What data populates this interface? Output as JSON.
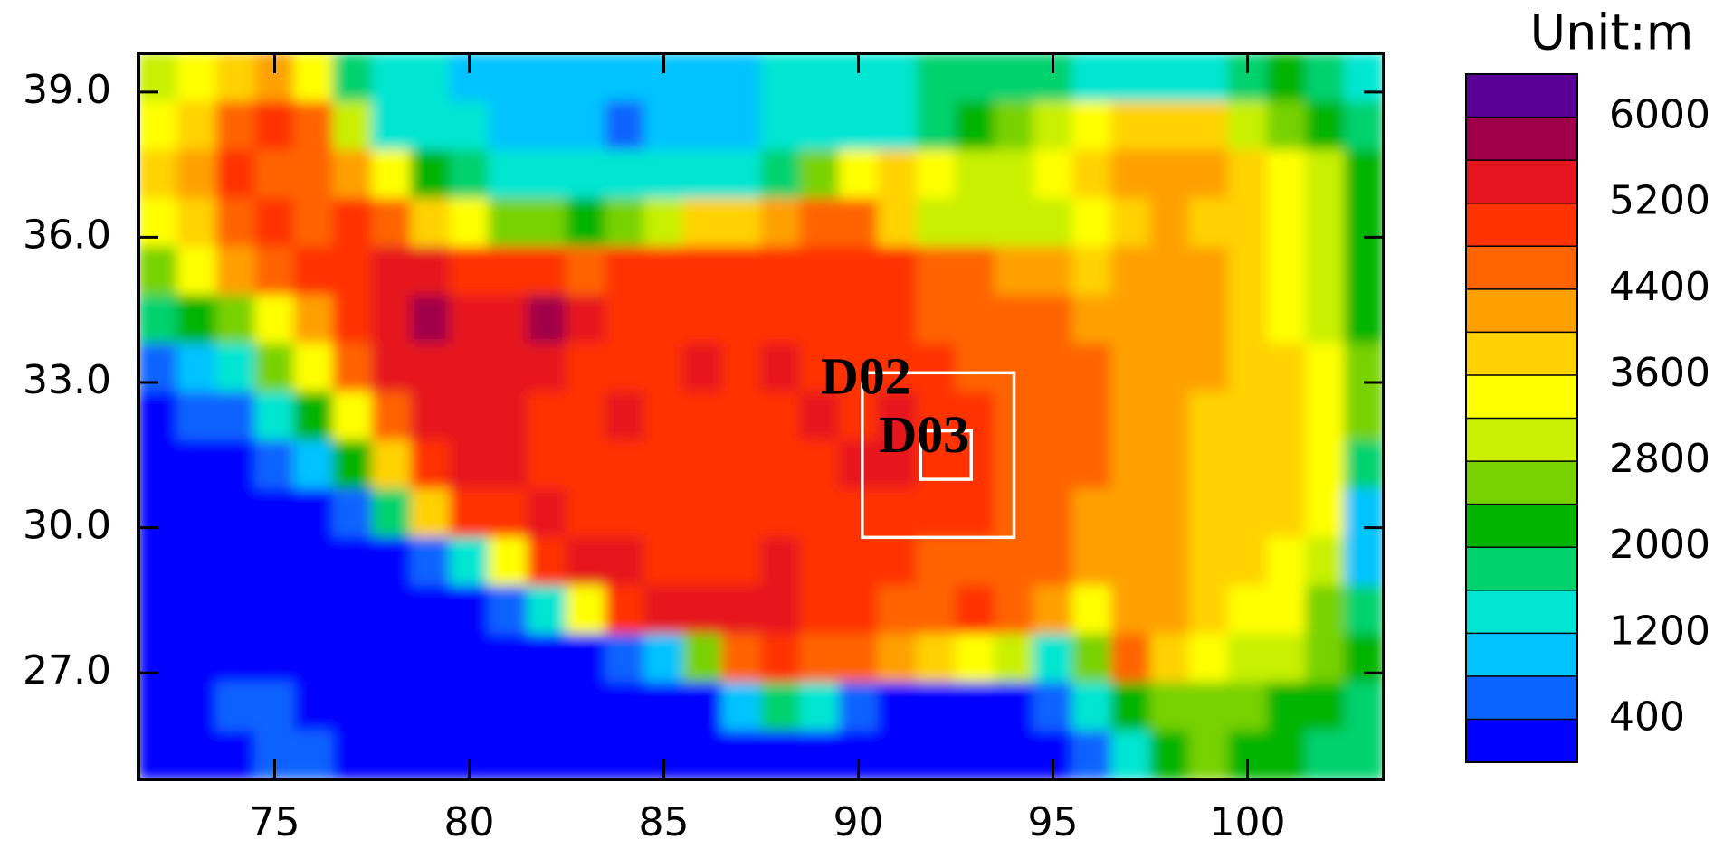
{
  "chart_data": {
    "type": "heatmap",
    "title": "Unit:m",
    "xlim": [
      71.5,
      103.5
    ],
    "ylim": [
      24.8,
      39.8
    ],
    "xticks": [
      75,
      80,
      85,
      90,
      95,
      100
    ],
    "yticks": [
      {
        "value": 27,
        "label": "27.0"
      },
      {
        "value": 30,
        "label": "30.0"
      },
      {
        "value": 33,
        "label": "33.0"
      },
      {
        "value": 36,
        "label": "36.0"
      },
      {
        "value": 39,
        "label": "39.0"
      }
    ],
    "lon": [
      72,
      73,
      74,
      75,
      76,
      77,
      78,
      79,
      80,
      81,
      82,
      83,
      84,
      85,
      86,
      87,
      88,
      89,
      90,
      91,
      92,
      93,
      94,
      95,
      96,
      97,
      98,
      99,
      100,
      101,
      102,
      103
    ],
    "lat": [
      39.3,
      38.3,
      37.3,
      36.3,
      35.3,
      34.3,
      33.3,
      32.3,
      31.3,
      30.3,
      29.3,
      28.3,
      27.3,
      26.3,
      25.3
    ],
    "z": [
      [
        3000,
        3500,
        3800,
        4200,
        3500,
        1800,
        1300,
        1200,
        1100,
        1100,
        1100,
        1000,
        1100,
        1100,
        1100,
        1100,
        1200,
        1200,
        1200,
        1400,
        1600,
        1800,
        1800,
        1600,
        1500,
        1500,
        1500,
        1500,
        1800,
        2000,
        1600,
        1400
      ],
      [
        3200,
        3800,
        4500,
        4800,
        4400,
        2800,
        1400,
        1200,
        1200,
        1100,
        1000,
        800,
        700,
        1000,
        1100,
        1100,
        1200,
        1200,
        1300,
        1400,
        1600,
        2000,
        2600,
        3000,
        3400,
        3600,
        3800,
        3600,
        3000,
        2400,
        2000,
        1800
      ],
      [
        3600,
        4000,
        4800,
        4600,
        4400,
        4000,
        3200,
        2200,
        1600,
        1500,
        1400,
        1300,
        1300,
        1300,
        1400,
        1500,
        1800,
        2600,
        3400,
        3600,
        3400,
        3000,
        2900,
        3400,
        3800,
        4000,
        4200,
        4000,
        3800,
        3400,
        2800,
        2200
      ],
      [
        3400,
        3800,
        4400,
        4800,
        4600,
        4800,
        4400,
        3600,
        3200,
        2600,
        2400,
        2200,
        2400,
        3000,
        3600,
        3800,
        4000,
        4400,
        4400,
        3800,
        2900,
        2800,
        2800,
        2900,
        3400,
        3800,
        4000,
        3800,
        3600,
        3400,
        2800,
        2200
      ],
      [
        2600,
        3200,
        4000,
        4400,
        4800,
        4800,
        5200,
        5200,
        5000,
        4800,
        4800,
        4600,
        4800,
        4800,
        4800,
        4800,
        4800,
        4800,
        4800,
        4800,
        4600,
        4400,
        4200,
        4000,
        3800,
        4000,
        4200,
        4000,
        3600,
        3200,
        2800,
        2000
      ],
      [
        1600,
        2000,
        2600,
        3200,
        4000,
        4800,
        5200,
        5600,
        5200,
        5200,
        5600,
        5200,
        5000,
        5000,
        4900,
        4900,
        5000,
        4900,
        4800,
        4800,
        4700,
        4600,
        4500,
        4400,
        4200,
        4000,
        4200,
        4000,
        3800,
        3400,
        3000,
        2000
      ],
      [
        600,
        800,
        1400,
        2400,
        3400,
        4600,
        5200,
        5400,
        5200,
        5400,
        5200,
        5000,
        5000,
        5000,
        5200,
        5000,
        5200,
        5000,
        4900,
        4800,
        4800,
        4700,
        4600,
        4600,
        4400,
        4200,
        4000,
        4000,
        3800,
        3600,
        3200,
        2400
      ],
      [
        300,
        400,
        600,
        1200,
        2000,
        3400,
        4600,
        5200,
        5200,
        5200,
        5000,
        5000,
        5200,
        5000,
        5000,
        5000,
        5100,
        5200,
        5000,
        5200,
        5000,
        4800,
        4700,
        4600,
        4400,
        4200,
        4000,
        3800,
        3600,
        3800,
        3200,
        2600
      ],
      [
        200,
        200,
        300,
        400,
        800,
        2000,
        3800,
        4800,
        5200,
        5200,
        5000,
        5000,
        5000,
        4800,
        4800,
        5000,
        5000,
        5000,
        5200,
        5200,
        5000,
        4800,
        4600,
        4400,
        4400,
        4200,
        4000,
        3600,
        3600,
        3800,
        3400,
        1800
      ],
      [
        200,
        200,
        200,
        200,
        300,
        500,
        1600,
        3600,
        4800,
        5000,
        5200,
        5000,
        4800,
        4800,
        4800,
        5000,
        5000,
        5000,
        5000,
        4800,
        4900,
        4800,
        4600,
        4400,
        4200,
        4200,
        4000,
        3800,
        3600,
        3600,
        3200,
        1000
      ],
      [
        200,
        200,
        200,
        200,
        200,
        200,
        300,
        400,
        1400,
        3400,
        4800,
        5200,
        5200,
        5000,
        5000,
        5000,
        5200,
        5000,
        4800,
        4800,
        4600,
        4400,
        4400,
        4400,
        4200,
        4000,
        4000,
        3600,
        3600,
        3400,
        3000,
        1000
      ],
      [
        200,
        200,
        200,
        200,
        200,
        200,
        200,
        200,
        200,
        400,
        1200,
        3200,
        4800,
        5200,
        5200,
        5200,
        5200,
        5000,
        4800,
        4600,
        4600,
        4800,
        4400,
        4000,
        3400,
        4200,
        4000,
        3600,
        3400,
        3200,
        2600,
        1600
      ],
      [
        200,
        200,
        200,
        200,
        200,
        200,
        200,
        200,
        200,
        200,
        200,
        200,
        400,
        1000,
        2600,
        4400,
        4800,
        4400,
        4400,
        4200,
        3800,
        3400,
        2800,
        1400,
        2400,
        4400,
        3800,
        3200,
        3000,
        2800,
        2400,
        2000
      ],
      [
        200,
        200,
        500,
        600,
        200,
        200,
        200,
        200,
        200,
        200,
        200,
        200,
        200,
        200,
        200,
        800,
        1600,
        1400,
        600,
        300,
        200,
        200,
        200,
        400,
        1200,
        2000,
        2400,
        2600,
        2400,
        2200,
        2000,
        1800
      ],
      [
        200,
        200,
        200,
        500,
        500,
        200,
        200,
        200,
        200,
        200,
        200,
        200,
        200,
        200,
        200,
        200,
        200,
        200,
        200,
        200,
        200,
        200,
        200,
        200,
        600,
        1400,
        2000,
        2400,
        2200,
        2000,
        1800,
        1600
      ]
    ],
    "colorbar": {
      "levels": [
        400,
        800,
        1200,
        1600,
        2000,
        2400,
        2800,
        3200,
        3600,
        4000,
        4400,
        4800,
        5200,
        5600,
        6000
      ],
      "colors": [
        "#0000ff",
        "#0a64ff",
        "#00c3ff",
        "#00e6d2",
        "#00d26e",
        "#00b400",
        "#78d200",
        "#c8f000",
        "#ffff00",
        "#ffd200",
        "#ffa000",
        "#ff6400",
        "#ff3200",
        "#e6141e",
        "#a0004a",
        "#5a0096"
      ],
      "ticks": [
        400,
        1200,
        2000,
        2800,
        3600,
        4400,
        5200,
        6000
      ]
    },
    "domains": [
      {
        "name": "D02",
        "lon": [
          90.1,
          94.0
        ],
        "lat": [
          29.8,
          33.2
        ]
      },
      {
        "name": "D03",
        "lon": [
          91.6,
          92.9
        ],
        "lat": [
          31.0,
          32.0
        ]
      }
    ]
  }
}
